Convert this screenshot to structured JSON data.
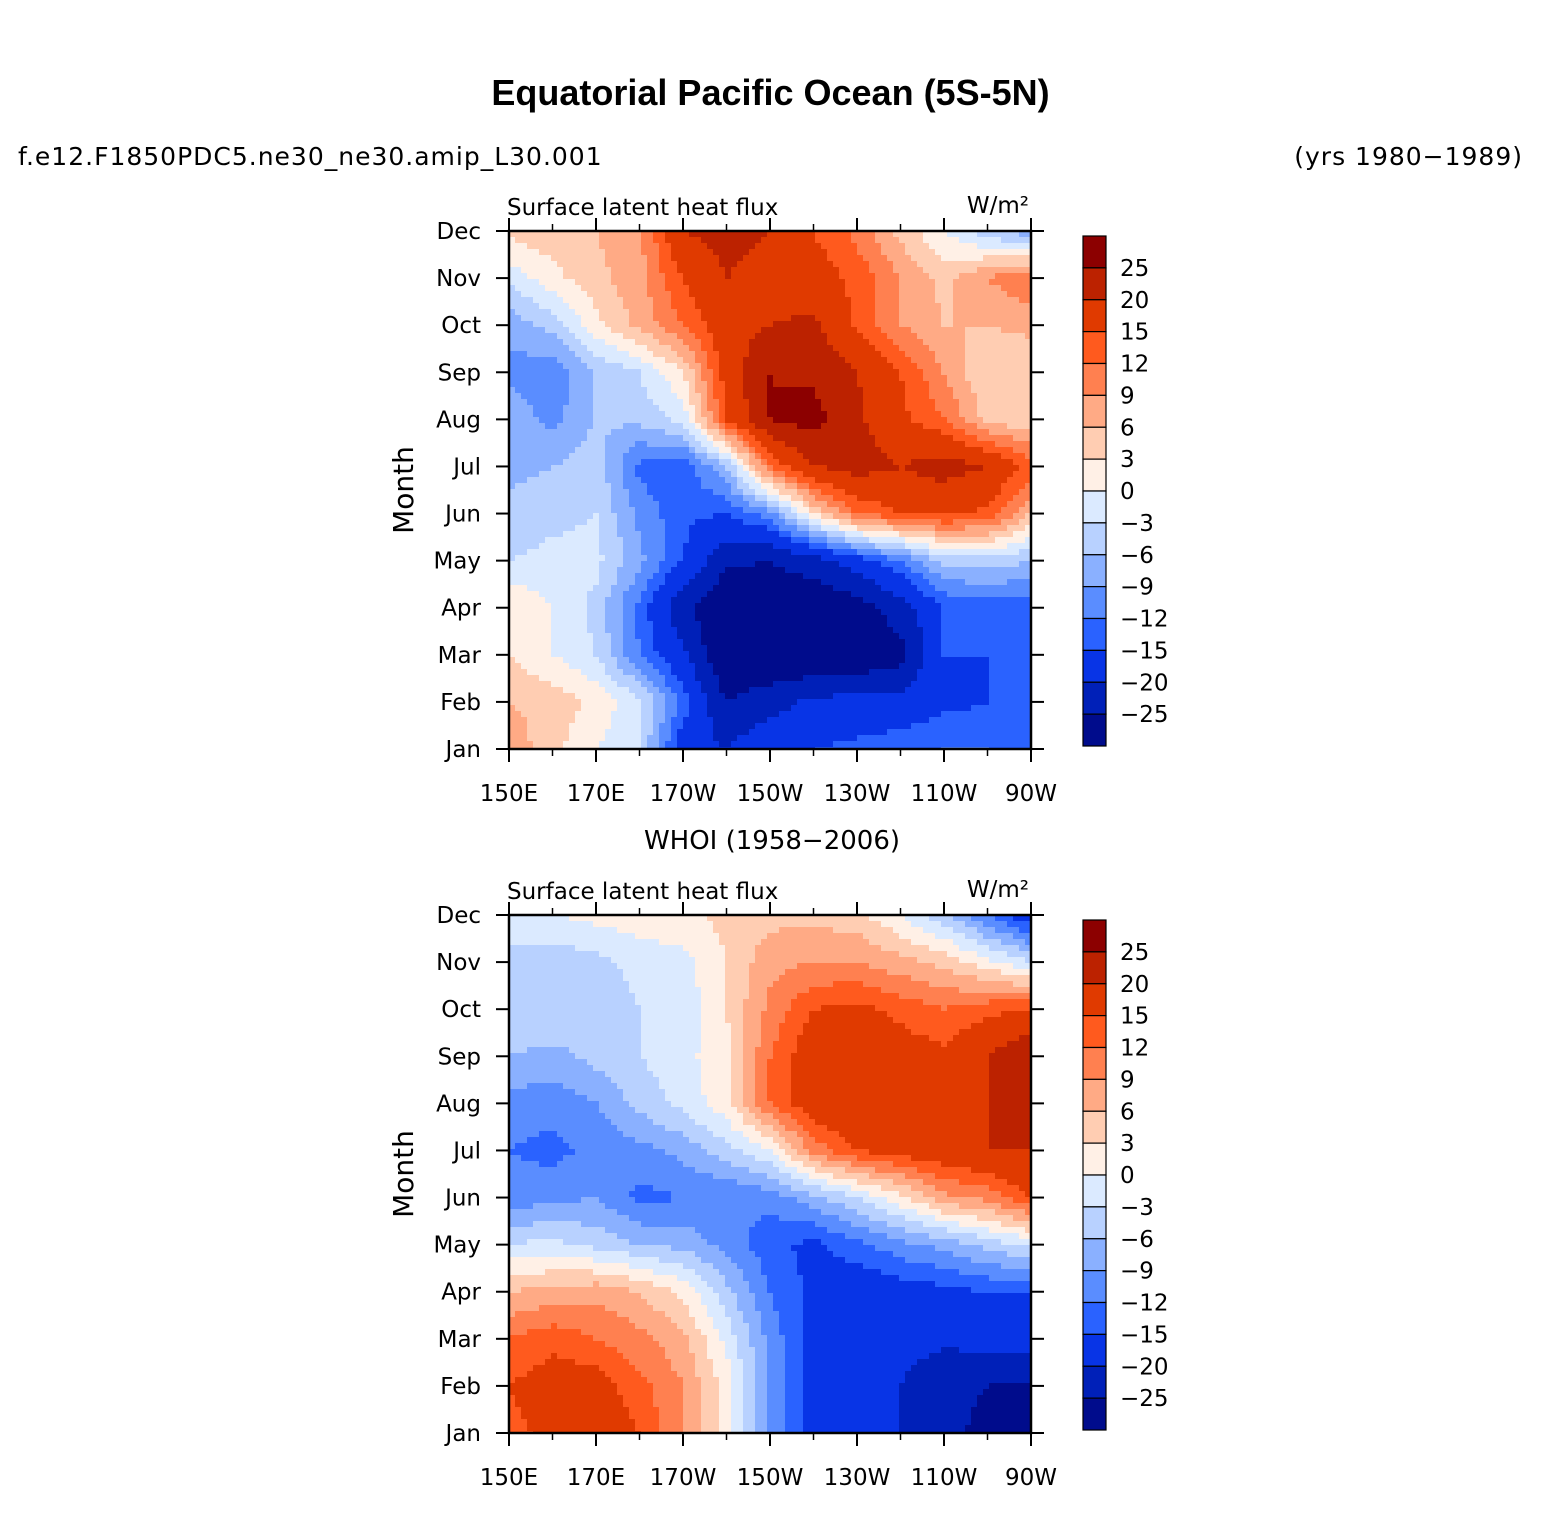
{
  "title": "Equatorial Pacific Ocean (5S-5N)",
  "case_name": "f.e12.F1850PDC5.ne30_ne30.amip_L30.001",
  "years_label": "(yrs 1980−1989)",
  "chart_data": [
    {
      "type": "heatmap",
      "title": "",
      "subtitle_left": "Surface latent heat flux",
      "units": "W/m²",
      "xlabel": "",
      "ylabel": "Month",
      "x_ticks": [
        "150E",
        "170E",
        "170W",
        "150W",
        "130W",
        "110W",
        "90W"
      ],
      "x_values": [
        150,
        170,
        190,
        210,
        230,
        250,
        270
      ],
      "y_ticks": [
        "Jan",
        "Feb",
        "Mar",
        "Apr",
        "May",
        "Jun",
        "Jul",
        "Aug",
        "Sep",
        "Oct",
        "Nov",
        "Dec"
      ],
      "colorbar_levels": [
        "25",
        "20",
        "15",
        "12",
        "9",
        "6",
        "3",
        "0",
        "−3",
        "−6",
        "−9",
        "−12",
        "−15",
        "−20",
        "−25"
      ],
      "colorbar_colors": [
        "#8c0000",
        "#bc2200",
        "#e03a00",
        "#ff5a1e",
        "#ff8050",
        "#ffaa85",
        "#ffcdb2",
        "#fff0e6",
        "#dbeaff",
        "#b8d1ff",
        "#8ab0ff",
        "#5a8dff",
        "#2a62ff",
        "#0834e6",
        "#0020b8",
        "#000c8c"
      ],
      "grid": [
        [
          8,
          4,
          0,
          -3,
          -18,
          -20,
          -16,
          -15,
          -14,
          -13,
          -12,
          -12,
          -15
        ],
        [
          6,
          5,
          2,
          -2,
          -13,
          -25,
          -22,
          -19,
          -18,
          -18,
          -16,
          -15,
          -14
        ],
        [
          3,
          0,
          -3,
          -12,
          -19,
          -30,
          -30,
          -30,
          -30,
          -27,
          -15,
          -15,
          -15
        ],
        [
          3,
          0,
          -4,
          -13,
          -24,
          -30,
          -30,
          -30,
          -28,
          -22,
          -15,
          -14,
          -14
        ],
        [
          -3,
          -2,
          -2,
          -8,
          -15,
          -24,
          -25,
          -22,
          -17,
          -12,
          -5,
          -4,
          -6
        ],
        [
          -5,
          -4,
          -3,
          -10,
          -14,
          -15,
          -10,
          3,
          12,
          15,
          16,
          14,
          6
        ],
        [
          -7,
          -6,
          -4,
          -13,
          -14,
          -6,
          12,
          20,
          22,
          20,
          22,
          20,
          14
        ],
        [
          -7,
          -10,
          -6,
          -5,
          -2,
          15,
          25,
          27,
          21,
          16,
          12,
          5,
          3
        ],
        [
          -10,
          -11,
          -6,
          -3,
          3,
          17,
          25,
          24,
          20,
          15,
          9,
          3,
          3
        ],
        [
          -8,
          -5,
          2,
          7,
          12,
          18,
          20,
          21,
          14,
          9,
          6,
          6,
          7
        ],
        [
          -2,
          2,
          5,
          8,
          15,
          20,
          18,
          17,
          14,
          9,
          5,
          9,
          12
        ],
        [
          4,
          5,
          6,
          8,
          20,
          22,
          20,
          15,
          11,
          5,
          0,
          -5,
          -8
        ]
      ]
    },
    {
      "type": "heatmap",
      "title": "WHOI (1958−2006)",
      "subtitle_left": "Surface latent heat flux",
      "units": "W/m²",
      "xlabel": "",
      "ylabel": "Month",
      "x_ticks": [
        "150E",
        "170E",
        "170W",
        "150W",
        "130W",
        "110W",
        "90W"
      ],
      "x_values": [
        150,
        170,
        190,
        210,
        230,
        250,
        270
      ],
      "y_ticks": [
        "Jan",
        "Feb",
        "Mar",
        "Apr",
        "May",
        "Jun",
        "Jul",
        "Aug",
        "Sep",
        "Oct",
        "Nov",
        "Dec"
      ],
      "colorbar_levels": [
        "25",
        "20",
        "15",
        "12",
        "9",
        "6",
        "3",
        "0",
        "−3",
        "−6",
        "−9",
        "−12",
        "−15",
        "−20",
        "−25"
      ],
      "colorbar_colors": [
        "#8c0000",
        "#bc2200",
        "#e03a00",
        "#ff5a1e",
        "#ff8050",
        "#ffaa85",
        "#ffcdb2",
        "#fff0e6",
        "#dbeaff",
        "#b8d1ff",
        "#8ab0ff",
        "#5a8dff",
        "#2a62ff",
        "#0834e6",
        "#0020b8",
        "#000c8c"
      ],
      "grid": [
        [
          14,
          16,
          18,
          15,
          9,
          2,
          -10,
          -17,
          -17,
          -20,
          -24,
          -26,
          -28
        ],
        [
          15,
          17,
          17,
          13,
          9,
          2,
          -10,
          -17,
          -18,
          -20,
          -24,
          -25,
          -26
        ],
        [
          12,
          14,
          12,
          10,
          7,
          -1,
          -10,
          -17,
          -18,
          -18,
          -19,
          -18,
          -18
        ],
        [
          6,
          7,
          8,
          6,
          2,
          -5,
          -12,
          -16,
          -18,
          -17,
          -16,
          -15,
          -15
        ],
        [
          -3,
          -2,
          -4,
          -6,
          -7,
          -10,
          -14,
          -16,
          -13,
          -10,
          -8,
          -5,
          -2
        ],
        [
          -11,
          -10,
          -9,
          -13,
          -12,
          -12,
          -11,
          -7,
          -3,
          2,
          8,
          10,
          15
        ],
        [
          -12,
          -13,
          -11,
          -10,
          -8,
          -4,
          0,
          10,
          15,
          17,
          18,
          20,
          20
        ],
        [
          -10,
          -11,
          -9,
          -5,
          -2,
          2,
          12,
          18,
          20,
          15,
          18,
          20,
          22
        ],
        [
          -6,
          -7,
          -5,
          -3,
          -1,
          2,
          12,
          18,
          20,
          17,
          16,
          20,
          25
        ],
        [
          -4,
          -3,
          -5,
          -3,
          -2,
          3,
          10,
          15,
          16,
          14,
          12,
          14,
          15
        ],
        [
          -4,
          -5,
          -4,
          -2,
          -1,
          3,
          8,
          9,
          9,
          7,
          5,
          1,
          -3
        ],
        [
          -1,
          0,
          1,
          2,
          2,
          4,
          5,
          5,
          4,
          0,
          -5,
          -12,
          -18
        ]
      ]
    }
  ]
}
